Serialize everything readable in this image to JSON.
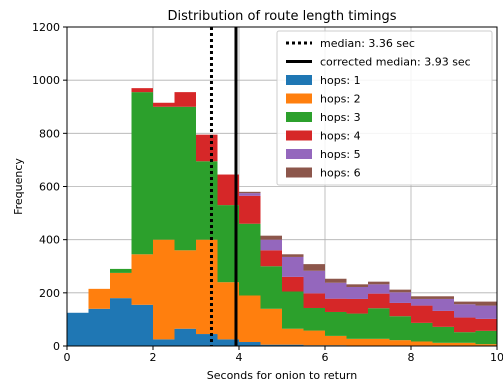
{
  "chart_data": {
    "type": "bar",
    "stacked": true,
    "title": "Distribution of route length timings",
    "xlabel": "Seconds for onion to return",
    "ylabel": "Frequency",
    "xlim": [
      0,
      10
    ],
    "ylim": [
      0,
      1200
    ],
    "xticks": [
      0,
      2,
      4,
      6,
      8,
      10
    ],
    "yticks": [
      0,
      200,
      400,
      600,
      800,
      1000,
      1200
    ],
    "grid": true,
    "legend_position": "top-right",
    "bin_edges": [
      0.0,
      0.5,
      1.0,
      1.5,
      2.0,
      2.5,
      3.0,
      3.5,
      4.0,
      4.5,
      5.0,
      5.5,
      6.0,
      6.5,
      7.0,
      7.5,
      8.0,
      8.5,
      9.0,
      9.5,
      10.0
    ],
    "series": [
      {
        "name": "hops: 1",
        "color": "#1f77b4",
        "values": [
          125,
          140,
          180,
          155,
          25,
          65,
          45,
          25,
          15,
          5,
          5,
          3,
          3,
          2,
          2,
          2,
          2,
          2,
          2,
          2
        ]
      },
      {
        "name": "hops: 2",
        "color": "#ff7f0e",
        "values": [
          0,
          75,
          95,
          190,
          375,
          295,
          355,
          215,
          175,
          135,
          60,
          55,
          35,
          25,
          25,
          20,
          15,
          10,
          10,
          5
        ]
      },
      {
        "name": "hops: 3",
        "color": "#2ca02c",
        "values": [
          0,
          0,
          15,
          610,
          500,
          540,
          295,
          290,
          270,
          160,
          140,
          85,
          90,
          95,
          115,
          90,
          70,
          60,
          40,
          50
        ]
      },
      {
        "name": "hops: 4",
        "color": "#d62728",
        "values": [
          0,
          0,
          0,
          15,
          15,
          55,
          100,
          115,
          105,
          60,
          55,
          55,
          50,
          55,
          55,
          50,
          65,
          60,
          55,
          45
        ]
      },
      {
        "name": "hops: 5",
        "color": "#9467bd",
        "values": [
          0,
          0,
          0,
          0,
          0,
          0,
          0,
          0,
          10,
          40,
          75,
          85,
          60,
          45,
          35,
          40,
          25,
          45,
          50,
          50
        ]
      },
      {
        "name": "hops: 6",
        "color": "#8c564b",
        "values": [
          0,
          0,
          0,
          0,
          0,
          0,
          0,
          0,
          5,
          15,
          10,
          25,
          15,
          10,
          10,
          10,
          10,
          10,
          10,
          15
        ]
      }
    ],
    "reference_lines": [
      {
        "name": "median: 3.36 sec",
        "x": 3.36,
        "style": "dotted",
        "color": "#000000"
      },
      {
        "name": "corrected median: 3.93 sec",
        "x": 3.93,
        "style": "solid",
        "color": "#000000"
      }
    ]
  }
}
